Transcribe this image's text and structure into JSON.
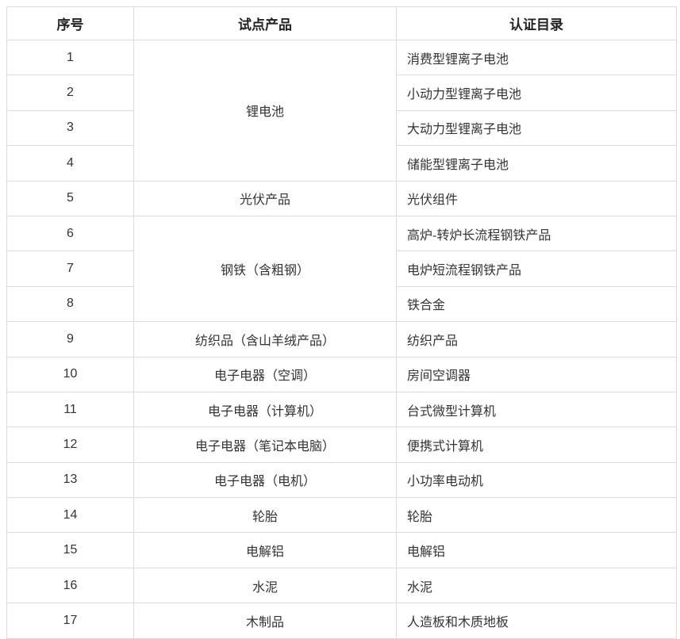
{
  "table": {
    "headers": [
      "序号",
      "试点产品",
      "认证目录"
    ],
    "groups": [
      {
        "product": "锂电池",
        "rows": [
          {
            "no": "1",
            "catalog": "消费型锂离子电池"
          },
          {
            "no": "2",
            "catalog": "小动力型锂离子电池"
          },
          {
            "no": "3",
            "catalog": "大动力型锂离子电池"
          },
          {
            "no": "4",
            "catalog": "储能型锂离子电池"
          }
        ]
      },
      {
        "product": "光伏产品",
        "rows": [
          {
            "no": "5",
            "catalog": "光伏组件"
          }
        ]
      },
      {
        "product": "钢铁（含粗钢）",
        "rows": [
          {
            "no": "6",
            "catalog": "高炉-转炉长流程钢铁产品"
          },
          {
            "no": "7",
            "catalog": "电炉短流程钢铁产品"
          },
          {
            "no": "8",
            "catalog": "铁合金"
          }
        ]
      },
      {
        "product": "纺织品（含山羊绒产品）",
        "rows": [
          {
            "no": "9",
            "catalog": "纺织产品"
          }
        ]
      },
      {
        "product": "电子电器（空调）",
        "rows": [
          {
            "no": "10",
            "catalog": "房间空调器"
          }
        ]
      },
      {
        "product": "电子电器（计算机）",
        "rows": [
          {
            "no": "11",
            "catalog": "台式微型计算机"
          }
        ]
      },
      {
        "product": "电子电器（笔记本电脑）",
        "rows": [
          {
            "no": "12",
            "catalog": "便携式计算机"
          }
        ]
      },
      {
        "product": "电子电器（电机）",
        "rows": [
          {
            "no": "13",
            "catalog": "小功率电动机"
          }
        ]
      },
      {
        "product": "轮胎",
        "rows": [
          {
            "no": "14",
            "catalog": "轮胎"
          }
        ]
      },
      {
        "product": "电解铝",
        "rows": [
          {
            "no": "15",
            "catalog": "电解铝"
          }
        ]
      },
      {
        "product": "水泥",
        "rows": [
          {
            "no": "16",
            "catalog": "水泥"
          }
        ]
      },
      {
        "product": "木制品",
        "rows": [
          {
            "no": "17",
            "catalog": "人造板和木质地板"
          }
        ]
      }
    ],
    "colors": {
      "border": "#dcdcdc",
      "text": "#333333",
      "header_text": "#222222",
      "background": "#ffffff"
    }
  }
}
